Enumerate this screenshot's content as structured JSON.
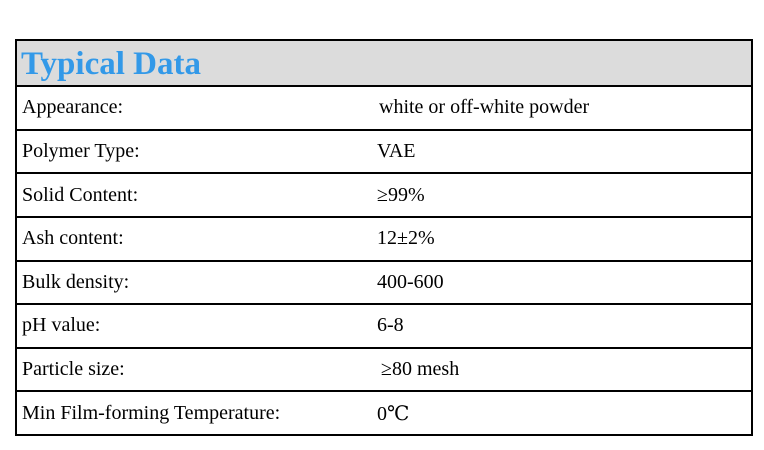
{
  "title": "Typical Data",
  "colors": {
    "title_text": "#3399e8",
    "title_background": "#dcdcdc",
    "border": "#000000"
  },
  "rows": [
    {
      "label": "Appearance:",
      "value": "white or off-white powder"
    },
    {
      "label": "Polymer Type:",
      "value": "VAE"
    },
    {
      "label": "Solid Content:",
      "value": "≥99%"
    },
    {
      "label": "Ash content:",
      "value": "12±2%"
    },
    {
      "label": "Bulk density:",
      "value": "400-600"
    },
    {
      "label": "pH value:",
      "value": "6-8"
    },
    {
      "label": "Particle size:",
      "value": "≥80 mesh"
    },
    {
      "label": "Min Film-forming Temperature:",
      "value": "0℃"
    }
  ]
}
